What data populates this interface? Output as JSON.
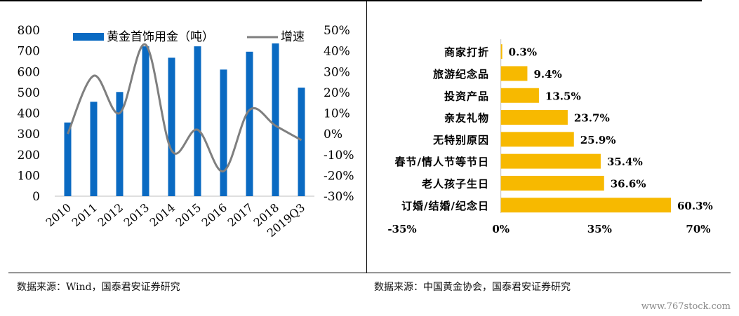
{
  "left_source": "数据来源：Wind，国泰君安证券研究",
  "right_source": "数据来源：中国黄金协会，国泰君安证券研究",
  "watermark": "www.767stock.com",
  "colors": {
    "bar": "#0a6ac2",
    "line": "#7f7f7f",
    "hbar": "#f7b900"
  },
  "chart_data": [
    {
      "type": "bar",
      "categories": [
        "2010",
        "2011",
        "2012",
        "2013",
        "2014",
        "2015",
        "2016",
        "2017",
        "2018",
        "2019Q3"
      ],
      "series": [
        {
          "name": "黄金首饰用金（吨）",
          "type": "bar",
          "axis": "left",
          "values": [
            355,
            455,
            502,
            722,
            667,
            722,
            610,
            696,
            736,
            523
          ]
        },
        {
          "name": "增速",
          "type": "line",
          "axis": "right",
          "values": [
            0.0,
            28.0,
            10.0,
            43.0,
            -8.0,
            2.0,
            -18.0,
            11.5,
            4.0,
            -3.0
          ]
        }
      ],
      "y_left": {
        "ylim": [
          0,
          800
        ],
        "ticks": [
          "0",
          "100",
          "200",
          "300",
          "400",
          "500",
          "600",
          "700",
          "800"
        ]
      },
      "y_right": {
        "ylim": [
          -30,
          50
        ],
        "ticks": [
          "-30%",
          "-20%",
          "-10%",
          "0%",
          "10%",
          "20%",
          "30%",
          "40%",
          "50%"
        ]
      },
      "legend": "top"
    },
    {
      "type": "bar",
      "orientation": "horizontal",
      "categories": [
        "商家打折",
        "旅游纪念品",
        "投资产品",
        "亲友礼物",
        "无特别原因",
        "春节/情人节等节日",
        "老人孩子生日",
        "订婚/结婚/纪念日"
      ],
      "values": [
        0.3,
        9.4,
        13.5,
        23.7,
        25.9,
        35.4,
        36.6,
        60.3
      ],
      "value_labels": [
        "0.3%",
        "9.4%",
        "13.5%",
        "23.7%",
        "25.9%",
        "35.4%",
        "36.6%",
        "60.3%"
      ],
      "xlim": [
        -35,
        70
      ],
      "x_ticks": [
        "-35%",
        "0%",
        "35%",
        "70%"
      ]
    }
  ]
}
